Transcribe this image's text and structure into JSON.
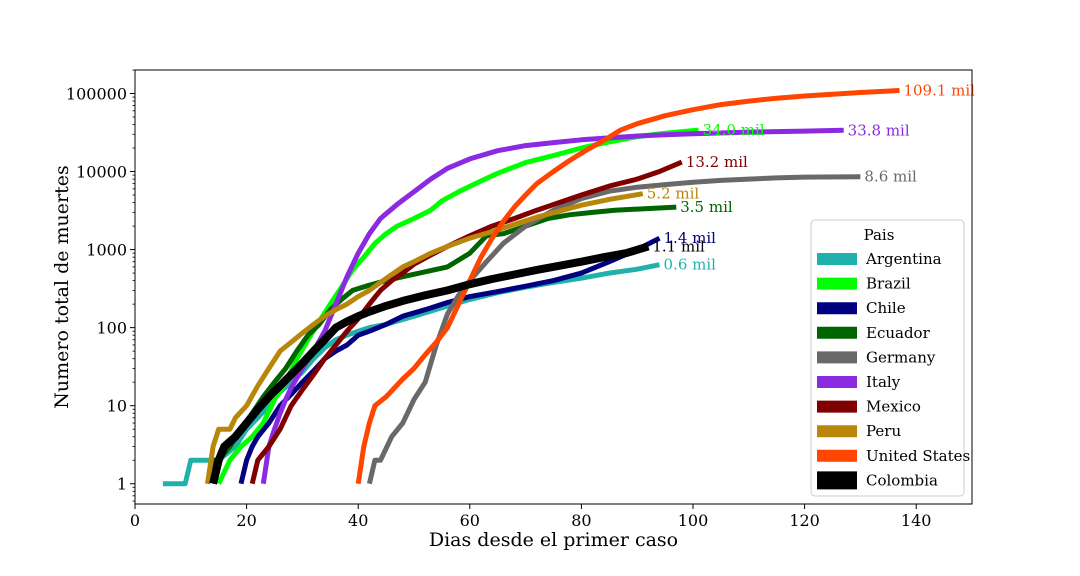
{
  "chart_data": {
    "type": "line",
    "xlabel": "Dias desde el primer caso",
    "ylabel": "Numero total de muertes",
    "xlim": [
      0,
      150
    ],
    "ylim": [
      0.55,
      200000
    ],
    "yscale": "log",
    "grid": false,
    "x_ticks": [
      0,
      20,
      40,
      60,
      80,
      100,
      120,
      140
    ],
    "x_tick_labels": [
      "0",
      "20",
      "40",
      "60",
      "80",
      "100",
      "120",
      "140"
    ],
    "y_ticks": [
      1,
      10,
      100,
      1000,
      10000,
      100000
    ],
    "y_tick_labels": [
      "1",
      "10",
      "100",
      "1000",
      "10000",
      "100000"
    ],
    "legend": {
      "title": "Pais",
      "placement": "lower-right"
    },
    "series": [
      {
        "name": "Argentina",
        "color": "#20b2aa",
        "end_label": "0.6 mil",
        "points": [
          [
            5,
            1
          ],
          [
            9,
            1
          ],
          [
            10,
            2
          ],
          [
            13,
            2
          ],
          [
            15,
            2
          ],
          [
            18,
            3
          ],
          [
            20,
            5
          ],
          [
            22,
            7
          ],
          [
            24,
            10
          ],
          [
            26,
            15
          ],
          [
            28,
            20
          ],
          [
            30,
            27
          ],
          [
            32,
            40
          ],
          [
            34,
            55
          ],
          [
            36,
            70
          ],
          [
            38,
            80
          ],
          [
            40,
            90
          ],
          [
            42,
            100
          ],
          [
            45,
            110
          ],
          [
            50,
            140
          ],
          [
            55,
            180
          ],
          [
            60,
            230
          ],
          [
            65,
            280
          ],
          [
            70,
            330
          ],
          [
            75,
            380
          ],
          [
            80,
            430
          ],
          [
            85,
            500
          ],
          [
            90,
            560
          ],
          [
            94,
            640
          ]
        ]
      },
      {
        "name": "Brazil",
        "color": "#00ff00",
        "end_label": "34.0 mil",
        "points": [
          [
            15,
            1
          ],
          [
            17,
            2
          ],
          [
            19,
            3
          ],
          [
            21,
            4
          ],
          [
            23,
            6
          ],
          [
            25,
            12
          ],
          [
            27,
            20
          ],
          [
            29,
            40
          ],
          [
            31,
            70
          ],
          [
            33,
            120
          ],
          [
            35,
            200
          ],
          [
            37,
            330
          ],
          [
            39,
            550
          ],
          [
            41,
            800
          ],
          [
            43,
            1200
          ],
          [
            45,
            1600
          ],
          [
            47,
            2000
          ],
          [
            50,
            2500
          ],
          [
            53,
            3200
          ],
          [
            55,
            4200
          ],
          [
            58,
            5500
          ],
          [
            61,
            7000
          ],
          [
            65,
            9500
          ],
          [
            70,
            13000
          ],
          [
            75,
            16000
          ],
          [
            80,
            20000
          ],
          [
            85,
            24000
          ],
          [
            90,
            28000
          ],
          [
            95,
            31000
          ],
          [
            101,
            34000
          ]
        ]
      },
      {
        "name": "Chile",
        "color": "#000080",
        "end_label": "1.4 mil",
        "points": [
          [
            19,
            1
          ],
          [
            20,
            2
          ],
          [
            21,
            3
          ],
          [
            22,
            4
          ],
          [
            24,
            6
          ],
          [
            26,
            10
          ],
          [
            28,
            14
          ],
          [
            30,
            20
          ],
          [
            32,
            28
          ],
          [
            34,
            40
          ],
          [
            36,
            50
          ],
          [
            38,
            60
          ],
          [
            40,
            80
          ],
          [
            42,
            90
          ],
          [
            45,
            110
          ],
          [
            48,
            140
          ],
          [
            52,
            170
          ],
          [
            56,
            210
          ],
          [
            60,
            250
          ],
          [
            65,
            290
          ],
          [
            70,
            340
          ],
          [
            75,
            400
          ],
          [
            80,
            500
          ],
          [
            85,
            700
          ],
          [
            90,
            1000
          ],
          [
            94,
            1400
          ]
        ]
      },
      {
        "name": "Ecuador",
        "color": "#006400",
        "end_label": "3.5 mil",
        "points": [
          [
            13,
            1
          ],
          [
            14,
            2
          ],
          [
            15,
            2
          ],
          [
            17,
            3
          ],
          [
            19,
            5
          ],
          [
            21,
            8
          ],
          [
            23,
            13
          ],
          [
            25,
            20
          ],
          [
            27,
            30
          ],
          [
            29,
            50
          ],
          [
            31,
            80
          ],
          [
            33,
            110
          ],
          [
            35,
            170
          ],
          [
            37,
            230
          ],
          [
            39,
            300
          ],
          [
            42,
            350
          ],
          [
            45,
            400
          ],
          [
            48,
            450
          ],
          [
            52,
            520
          ],
          [
            56,
            600
          ],
          [
            60,
            900
          ],
          [
            63,
            1500
          ],
          [
            66,
            1600
          ],
          [
            70,
            2000
          ],
          [
            74,
            2500
          ],
          [
            78,
            2800
          ],
          [
            82,
            3000
          ],
          [
            86,
            3200
          ],
          [
            90,
            3300
          ],
          [
            97,
            3500
          ]
        ]
      },
      {
        "name": "Germany",
        "color": "#696969",
        "end_label": "8.6 mil",
        "points": [
          [
            42,
            1
          ],
          [
            43,
            2
          ],
          [
            44,
            2
          ],
          [
            46,
            4
          ],
          [
            48,
            6
          ],
          [
            50,
            12
          ],
          [
            52,
            20
          ],
          [
            54,
            60
          ],
          [
            56,
            150
          ],
          [
            58,
            260
          ],
          [
            60,
            400
          ],
          [
            63,
            700
          ],
          [
            66,
            1200
          ],
          [
            70,
            2000
          ],
          [
            75,
            3200
          ],
          [
            80,
            4500
          ],
          [
            85,
            5600
          ],
          [
            90,
            6300
          ],
          [
            95,
            6800
          ],
          [
            100,
            7300
          ],
          [
            105,
            7700
          ],
          [
            110,
            8000
          ],
          [
            115,
            8300
          ],
          [
            120,
            8500
          ],
          [
            130,
            8600
          ]
        ]
      },
      {
        "name": "Italy",
        "color": "#8a2be2",
        "end_label": "33.8 mil",
        "points": [
          [
            23,
            1
          ],
          [
            24,
            3
          ],
          [
            25,
            5
          ],
          [
            26,
            8
          ],
          [
            27,
            12
          ],
          [
            28,
            17
          ],
          [
            30,
            30
          ],
          [
            32,
            50
          ],
          [
            34,
            90
          ],
          [
            36,
            200
          ],
          [
            38,
            450
          ],
          [
            40,
            900
          ],
          [
            42,
            1600
          ],
          [
            44,
            2500
          ],
          [
            47,
            3800
          ],
          [
            50,
            5500
          ],
          [
            53,
            8000
          ],
          [
            56,
            11000
          ],
          [
            60,
            14500
          ],
          [
            65,
            18500
          ],
          [
            70,
            21500
          ],
          [
            75,
            23500
          ],
          [
            80,
            25500
          ],
          [
            85,
            27000
          ],
          [
            90,
            28500
          ],
          [
            95,
            29600
          ],
          [
            100,
            30500
          ],
          [
            110,
            32000
          ],
          [
            120,
            33000
          ],
          [
            127,
            33800
          ]
        ]
      },
      {
        "name": "Mexico",
        "color": "#800000",
        "end_label": "13.2 mil",
        "points": [
          [
            21,
            1
          ],
          [
            22,
            2
          ],
          [
            24,
            3
          ],
          [
            26,
            5
          ],
          [
            28,
            10
          ],
          [
            30,
            16
          ],
          [
            32,
            25
          ],
          [
            34,
            40
          ],
          [
            36,
            60
          ],
          [
            38,
            90
          ],
          [
            40,
            130
          ],
          [
            42,
            200
          ],
          [
            44,
            300
          ],
          [
            46,
            400
          ],
          [
            48,
            500
          ],
          [
            50,
            650
          ],
          [
            53,
            850
          ],
          [
            56,
            1100
          ],
          [
            60,
            1500
          ],
          [
            64,
            2000
          ],
          [
            68,
            2500
          ],
          [
            72,
            3200
          ],
          [
            76,
            4000
          ],
          [
            80,
            5000
          ],
          [
            85,
            6500
          ],
          [
            90,
            8000
          ],
          [
            94,
            10000
          ],
          [
            98,
            13200
          ]
        ]
      },
      {
        "name": "Peru",
        "color": "#b8860b",
        "end_label": "5.2 mil",
        "points": [
          [
            13,
            1
          ],
          [
            14,
            3
          ],
          [
            15,
            5
          ],
          [
            17,
            5
          ],
          [
            18,
            7
          ],
          [
            20,
            10
          ],
          [
            22,
            18
          ],
          [
            24,
            30
          ],
          [
            26,
            50
          ],
          [
            28,
            65
          ],
          [
            30,
            85
          ],
          [
            32,
            110
          ],
          [
            34,
            140
          ],
          [
            36,
            170
          ],
          [
            38,
            200
          ],
          [
            40,
            250
          ],
          [
            42,
            300
          ],
          [
            44,
            380
          ],
          [
            46,
            480
          ],
          [
            48,
            600
          ],
          [
            50,
            700
          ],
          [
            53,
            900
          ],
          [
            56,
            1100
          ],
          [
            60,
            1400
          ],
          [
            64,
            1700
          ],
          [
            68,
            2100
          ],
          [
            72,
            2600
          ],
          [
            76,
            3100
          ],
          [
            80,
            3700
          ],
          [
            85,
            4400
          ],
          [
            91,
            5200
          ]
        ]
      },
      {
        "name": "United States",
        "color": "#ff4500",
        "end_label": "109.1 mil",
        "points": [
          [
            40,
            1
          ],
          [
            41,
            3
          ],
          [
            42,
            6
          ],
          [
            43,
            10
          ],
          [
            45,
            13
          ],
          [
            48,
            22
          ],
          [
            50,
            30
          ],
          [
            52,
            45
          ],
          [
            54,
            65
          ],
          [
            56,
            100
          ],
          [
            58,
            200
          ],
          [
            60,
            400
          ],
          [
            62,
            800
          ],
          [
            64,
            1400
          ],
          [
            66,
            2300
          ],
          [
            68,
            3500
          ],
          [
            70,
            5000
          ],
          [
            72,
            7000
          ],
          [
            75,
            10000
          ],
          [
            78,
            14000
          ],
          [
            81,
            19000
          ],
          [
            84,
            25000
          ],
          [
            87,
            34000
          ],
          [
            90,
            41000
          ],
          [
            95,
            52000
          ],
          [
            100,
            62000
          ],
          [
            105,
            72000
          ],
          [
            110,
            80000
          ],
          [
            115,
            87000
          ],
          [
            120,
            93000
          ],
          [
            125,
            98000
          ],
          [
            130,
            103000
          ],
          [
            137,
            109100
          ]
        ]
      },
      {
        "name": "Colombia",
        "color": "#000000",
        "end_label": "1.1 mil",
        "points": [
          [
            14,
            1
          ],
          [
            15,
            2
          ],
          [
            16,
            3
          ],
          [
            18,
            4
          ],
          [
            20,
            6
          ],
          [
            22,
            9
          ],
          [
            24,
            13
          ],
          [
            26,
            18
          ],
          [
            28,
            25
          ],
          [
            30,
            35
          ],
          [
            32,
            50
          ],
          [
            34,
            70
          ],
          [
            36,
            100
          ],
          [
            38,
            120
          ],
          [
            40,
            140
          ],
          [
            42,
            160
          ],
          [
            45,
            190
          ],
          [
            48,
            220
          ],
          [
            52,
            260
          ],
          [
            56,
            300
          ],
          [
            60,
            360
          ],
          [
            64,
            420
          ],
          [
            68,
            480
          ],
          [
            72,
            550
          ],
          [
            76,
            620
          ],
          [
            80,
            700
          ],
          [
            84,
            800
          ],
          [
            88,
            900
          ],
          [
            92,
            1100
          ]
        ]
      }
    ]
  }
}
